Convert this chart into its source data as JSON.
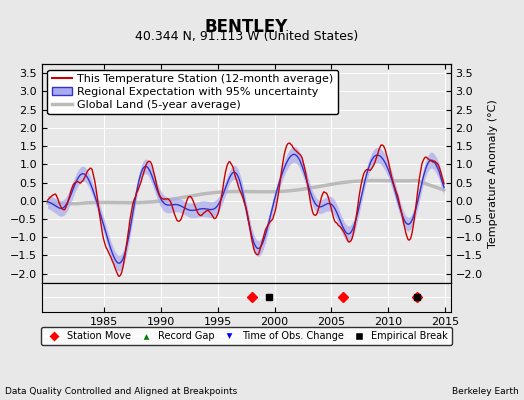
{
  "title": "BENTLEY",
  "subtitle": "40.344 N, 91.113 W (United States)",
  "ylabel": "Temperature Anomaly (°C)",
  "xlabel_left": "Data Quality Controlled and Aligned at Breakpoints",
  "xlabel_right": "Berkeley Earth",
  "ylim": [
    -2.25,
    3.75
  ],
  "xlim": [
    1979.5,
    2015.5
  ],
  "yticks": [
    -2,
    -1.5,
    -1,
    -0.5,
    0,
    0.5,
    1,
    1.5,
    2,
    2.5,
    3,
    3.5
  ],
  "xticks": [
    1985,
    1990,
    1995,
    2000,
    2005,
    2010,
    2015
  ],
  "station_color": "#cc0000",
  "regional_color": "#3333cc",
  "regional_fill_color": "#aaaaee",
  "global_color": "#bbbbbb",
  "background_color": "#e8e8e8",
  "grid_color": "#ffffff",
  "legend_labels": [
    "This Temperature Station (12-month average)",
    "Regional Expectation with 95% uncertainty",
    "Global Land (5-year average)"
  ],
  "marker_events": {
    "station_moves": [
      1998.0,
      2006.0,
      2012.5
    ],
    "empirical_breaks": [
      1999.5,
      2012.5
    ]
  },
  "title_fontsize": 12,
  "subtitle_fontsize": 9,
  "tick_fontsize": 8,
  "legend_fontsize": 8
}
